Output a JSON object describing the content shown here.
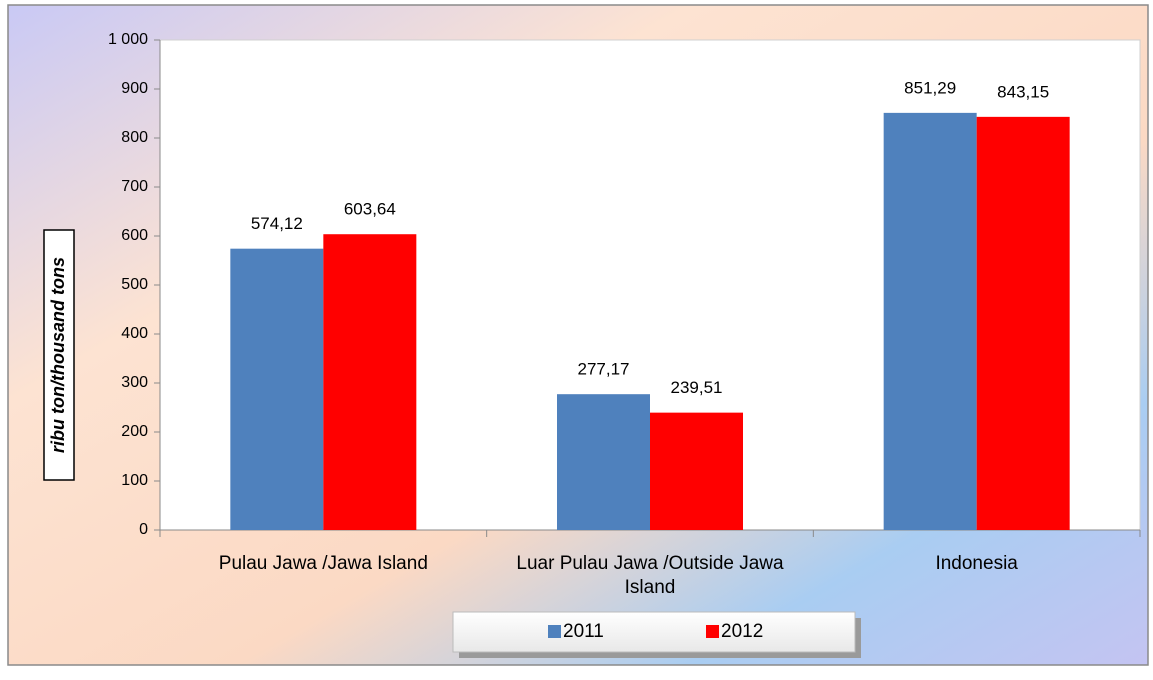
{
  "chart_data": {
    "type": "bar",
    "y_label": "ribu ton/thousand tons",
    "categories": [
      "Pulau Jawa /Jawa Island",
      "Luar Pulau Jawa /Outside Jawa Island",
      "Indonesia"
    ],
    "series": [
      {
        "name": "2011",
        "color": "#4f81bd",
        "values": [
          574.12,
          277.17,
          851.29
        ],
        "value_labels": [
          "574,12",
          "277,17",
          "851,29"
        ]
      },
      {
        "name": "2012",
        "color": "#ff0000",
        "values": [
          603.64,
          239.51,
          843.15
        ],
        "value_labels": [
          "603,64",
          "239,51",
          "843,15"
        ]
      }
    ],
    "ylim": [
      0,
      1000
    ],
    "yticks": [
      0,
      100,
      200,
      300,
      400,
      500,
      600,
      700,
      800,
      900,
      {
        "value": 1000,
        "label": "1 000"
      }
    ],
    "legend": "bottom"
  }
}
